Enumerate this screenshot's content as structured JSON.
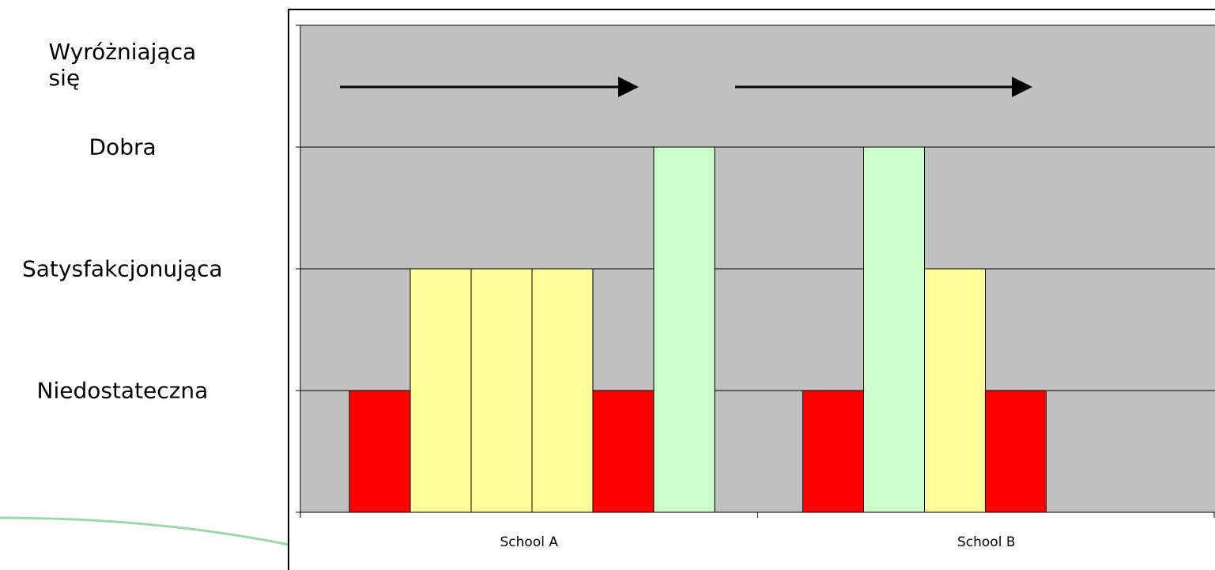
{
  "chart_data": {
    "type": "bar",
    "categories": [
      "School A",
      "School B"
    ],
    "values": [
      [
        1,
        2,
        2,
        2,
        1,
        3
      ],
      [
        1,
        3,
        2,
        1
      ]
    ],
    "colors": [
      [
        "#ff0000",
        "#ffff99",
        "#ffff99",
        "#ffff99",
        "#ff0000",
        "#ccffcc"
      ],
      [
        "#ff0000",
        "#ccffcc",
        "#ffff99",
        "#ff0000"
      ]
    ],
    "ylim": [
      0,
      4
    ],
    "yticks": [
      0,
      {
        "value": 1,
        "label": "Niedostateczna"
      },
      {
        "value": 2,
        "label": "Satysfakcjonująca"
      },
      {
        "value": 3,
        "label": "Dobra"
      },
      {
        "value": 4,
        "label": "Wyróżniająca\nsię"
      }
    ],
    "grid": true
  }
}
